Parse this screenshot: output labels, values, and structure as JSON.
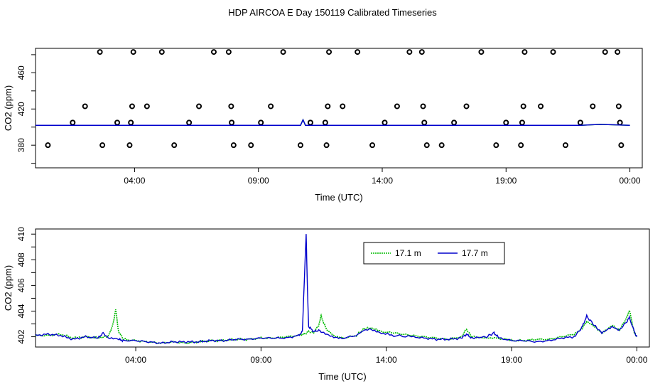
{
  "title": "HDP AIRCOA E  Day 150119  Calibrated Timeseries",
  "colors": {
    "green": "#00bb00",
    "blue": "#0000cc",
    "axis": "#000000"
  },
  "chart_data": [
    {
      "type": "scatter+line",
      "xlabel": "Time (UTC)",
      "ylabel": "CO2 (ppm)",
      "xlim": [
        0.0,
        24.5
      ],
      "ylim": [
        355,
        487
      ],
      "xticks": [
        4,
        9,
        14,
        19,
        24
      ],
      "xtick_labels": [
        "04:00",
        "09:00",
        "14:00",
        "19:00",
        "00:00"
      ],
      "yticks": [
        380,
        420,
        460
      ],
      "ytick_labels": [
        "380",
        "420",
        "460"
      ],
      "grid": false,
      "points_ppm_note": "",
      "points": [
        [
          0.5,
          380
        ],
        [
          1.5,
          405
        ],
        [
          2.0,
          423
        ],
        [
          2.6,
          483
        ],
        [
          2.7,
          380
        ],
        [
          3.3,
          405
        ],
        [
          3.8,
          380
        ],
        [
          3.85,
          405
        ],
        [
          3.9,
          423
        ],
        [
          3.95,
          483
        ],
        [
          4.5,
          423
        ],
        [
          5.1,
          483
        ],
        [
          5.6,
          380
        ],
        [
          6.2,
          405
        ],
        [
          6.6,
          423
        ],
        [
          7.2,
          483
        ],
        [
          7.8,
          483
        ],
        [
          7.9,
          423
        ],
        [
          7.92,
          405
        ],
        [
          8.0,
          380
        ],
        [
          8.7,
          380
        ],
        [
          9.1,
          405
        ],
        [
          9.5,
          423
        ],
        [
          10.0,
          483
        ],
        [
          10.7,
          380
        ],
        [
          11.1,
          405
        ],
        [
          11.7,
          405
        ],
        [
          11.75,
          380
        ],
        [
          11.8,
          423
        ],
        [
          11.85,
          483
        ],
        [
          12.4,
          423
        ],
        [
          13.0,
          483
        ],
        [
          13.6,
          380
        ],
        [
          14.1,
          405
        ],
        [
          14.6,
          423
        ],
        [
          15.1,
          483
        ],
        [
          15.6,
          483
        ],
        [
          15.65,
          423
        ],
        [
          15.7,
          405
        ],
        [
          15.8,
          380
        ],
        [
          16.4,
          380
        ],
        [
          16.9,
          405
        ],
        [
          17.4,
          423
        ],
        [
          18.0,
          483
        ],
        [
          18.6,
          380
        ],
        [
          19.0,
          405
        ],
        [
          19.6,
          380
        ],
        [
          19.65,
          405
        ],
        [
          19.7,
          423
        ],
        [
          19.75,
          483
        ],
        [
          20.4,
          423
        ],
        [
          20.9,
          483
        ],
        [
          21.4,
          380
        ],
        [
          22.0,
          405
        ],
        [
          22.5,
          423
        ],
        [
          23.0,
          483
        ],
        [
          23.5,
          483
        ],
        [
          23.55,
          423
        ],
        [
          23.6,
          405
        ],
        [
          23.65,
          380
        ]
      ],
      "series": [
        {
          "values_ppm": [
            [
              0,
              402
            ],
            [
              4,
              402
            ],
            [
              9,
              402
            ],
            [
              10.7,
              402
            ],
            [
              10.8,
              408
            ],
            [
              10.9,
              402
            ],
            [
              14,
              402
            ],
            [
              19,
              402
            ],
            [
              22,
              402
            ],
            [
              22.8,
              403
            ],
            [
              24,
              402
            ]
          ]
        }
      ]
    },
    {
      "type": "line",
      "xlabel": "Time (UTC)",
      "ylabel": "CO2 (ppm)",
      "xlim": [
        0.0,
        24.5
      ],
      "ylim": [
        401.2,
        410.4
      ],
      "xticks": [
        4,
        9,
        14,
        19,
        24
      ],
      "xtick_labels": [
        "04:00",
        "09:00",
        "14:00",
        "19:00",
        "00:00"
      ],
      "yticks": [
        402,
        404,
        406,
        408,
        410
      ],
      "ytick_labels": [
        "402",
        "404",
        "406",
        "408",
        "410"
      ],
      "grid": false,
      "legend": "top-center",
      "series": [
        {
          "name": "17.1 m",
          "color": "#00bb00",
          "style": "dotted",
          "points": [
            [
              0,
              402.1
            ],
            [
              0.5,
              402.1
            ],
            [
              1,
              402.2
            ],
            [
              1.5,
              401.9
            ],
            [
              2,
              402.0
            ],
            [
              2.5,
              401.9
            ],
            [
              2.9,
              402.0
            ],
            [
              3.1,
              403.0
            ],
            [
              3.2,
              404.2
            ],
            [
              3.3,
              402.5
            ],
            [
              3.5,
              401.8
            ],
            [
              4,
              401.7
            ],
            [
              4.5,
              401.6
            ],
            [
              5,
              401.5
            ],
            [
              5.5,
              401.6
            ],
            [
              6,
              401.5
            ],
            [
              6.5,
              401.6
            ],
            [
              7,
              401.7
            ],
            [
              7.5,
              401.7
            ],
            [
              8,
              401.8
            ],
            [
              8.5,
              401.8
            ],
            [
              9,
              401.9
            ],
            [
              9.5,
              401.9
            ],
            [
              10,
              402.0
            ],
            [
              10.5,
              402.1
            ],
            [
              10.7,
              402.2
            ],
            [
              10.9,
              402.4
            ],
            [
              11.1,
              402.3
            ],
            [
              11.3,
              402.9
            ],
            [
              11.4,
              403.6
            ],
            [
              11.6,
              402.6
            ],
            [
              11.9,
              402.1
            ],
            [
              12.3,
              401.9
            ],
            [
              12.8,
              402.1
            ],
            [
              13.1,
              402.6
            ],
            [
              13.4,
              402.7
            ],
            [
              13.8,
              402.4
            ],
            [
              14.3,
              402.3
            ],
            [
              15,
              402.1
            ],
            [
              15.5,
              402.0
            ],
            [
              16,
              401.9
            ],
            [
              16.5,
              401.8
            ],
            [
              17,
              402.0
            ],
            [
              17.2,
              402.6
            ],
            [
              17.4,
              402.0
            ],
            [
              18,
              401.9
            ],
            [
              18.3,
              401.9
            ],
            [
              18.8,
              401.8
            ],
            [
              19,
              401.7
            ],
            [
              19.5,
              401.7
            ],
            [
              20,
              401.8
            ],
            [
              20.5,
              401.8
            ],
            [
              21,
              402.0
            ],
            [
              21.5,
              402.2
            ],
            [
              21.8,
              402.6
            ],
            [
              22,
              403.2
            ],
            [
              22.3,
              402.8
            ],
            [
              22.6,
              402.3
            ],
            [
              23,
              402.9
            ],
            [
              23.3,
              402.5
            ],
            [
              23.6,
              403.5
            ],
            [
              23.7,
              404.1
            ],
            [
              23.9,
              402.3
            ],
            [
              24,
              402.0
            ]
          ]
        },
        {
          "name": "17.7 m",
          "color": "#0000cc",
          "style": "solid",
          "points": [
            [
              0,
              402.1
            ],
            [
              0.5,
              402.2
            ],
            [
              1,
              402.1
            ],
            [
              1.5,
              401.8
            ],
            [
              2,
              402.0
            ],
            [
              2.5,
              401.9
            ],
            [
              2.7,
              402.3
            ],
            [
              2.9,
              401.9
            ],
            [
              3.3,
              401.8
            ],
            [
              3.5,
              401.7
            ],
            [
              4,
              401.7
            ],
            [
              4.5,
              401.6
            ],
            [
              5,
              401.5
            ],
            [
              5.5,
              401.6
            ],
            [
              6,
              401.6
            ],
            [
              6.5,
              401.6
            ],
            [
              7,
              401.7
            ],
            [
              7.5,
              401.7
            ],
            [
              8,
              401.8
            ],
            [
              8.5,
              401.8
            ],
            [
              9,
              401.9
            ],
            [
              9.5,
              401.9
            ],
            [
              10,
              401.9
            ],
            [
              10.5,
              402.1
            ],
            [
              10.65,
              402.4
            ],
            [
              10.75,
              407.5
            ],
            [
              10.8,
              410.0
            ],
            [
              10.85,
              406.0
            ],
            [
              10.9,
              402.8
            ],
            [
              11.1,
              402.4
            ],
            [
              11.3,
              402.5
            ],
            [
              11.5,
              402.3
            ],
            [
              11.9,
              402.0
            ],
            [
              12.3,
              401.9
            ],
            [
              12.8,
              402.1
            ],
            [
              13.1,
              402.5
            ],
            [
              13.4,
              402.6
            ],
            [
              13.8,
              402.3
            ],
            [
              14.3,
              402.1
            ],
            [
              15,
              402.0
            ],
            [
              15.5,
              401.9
            ],
            [
              16,
              401.8
            ],
            [
              16.5,
              401.8
            ],
            [
              17,
              401.9
            ],
            [
              17.2,
              402.2
            ],
            [
              17.4,
              401.9
            ],
            [
              18,
              402.0
            ],
            [
              18.3,
              402.3
            ],
            [
              18.5,
              401.9
            ],
            [
              19,
              401.7
            ],
            [
              19.5,
              401.7
            ],
            [
              20,
              401.6
            ],
            [
              20.5,
              401.7
            ],
            [
              21,
              401.9
            ],
            [
              21.5,
              402.0
            ],
            [
              21.8,
              402.7
            ],
            [
              22,
              403.6
            ],
            [
              22.3,
              402.9
            ],
            [
              22.6,
              402.3
            ],
            [
              23,
              402.8
            ],
            [
              23.3,
              402.5
            ],
            [
              23.6,
              403.2
            ],
            [
              23.7,
              403.5
            ],
            [
              23.9,
              402.4
            ],
            [
              24,
              402.0
            ]
          ]
        }
      ]
    }
  ]
}
